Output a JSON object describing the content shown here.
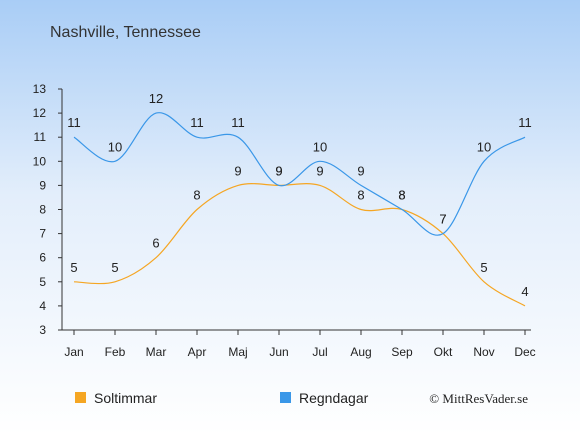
{
  "title": "Nashville, Tennessee",
  "credit": "© MittResVader.se",
  "chart_data": {
    "type": "line",
    "categories": [
      "Jan",
      "Feb",
      "Mar",
      "Apr",
      "Maj",
      "Jun",
      "Jul",
      "Aug",
      "Sep",
      "Okt",
      "Nov",
      "Dec"
    ],
    "ylim": [
      3,
      13
    ],
    "yticks": [
      3,
      4,
      5,
      6,
      7,
      8,
      9,
      10,
      11,
      12,
      13
    ],
    "grid": false,
    "legend_position": "bottom-left",
    "series": [
      {
        "name": "Soltimmar",
        "color": "#f5a623",
        "values": [
          5,
          5,
          6,
          8,
          9,
          9,
          9,
          8,
          8,
          7,
          5,
          4
        ]
      },
      {
        "name": "Regndagar",
        "color": "#3a97e8",
        "values": [
          11,
          10,
          12,
          11,
          11,
          9,
          10,
          9,
          8,
          7,
          10,
          11
        ]
      }
    ]
  }
}
